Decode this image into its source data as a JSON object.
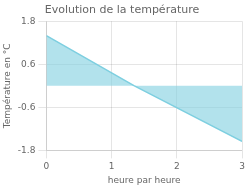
{
  "chart_data": {
    "type": "area",
    "title": "Evolution de la température",
    "xlabel": "heure par heure",
    "ylabel": "Température en °C",
    "x": [
      0,
      1.35,
      3
    ],
    "values": [
      1.4,
      0.0,
      -1.55
    ],
    "color": "#7ecfe0",
    "xlim": [
      0,
      3
    ],
    "ylim": [
      -1.8,
      1.8
    ],
    "xticks": [
      0,
      1,
      2,
      3
    ],
    "yticks": [
      -1.8,
      -0.6,
      0.6,
      1.8
    ],
    "grid": true
  }
}
